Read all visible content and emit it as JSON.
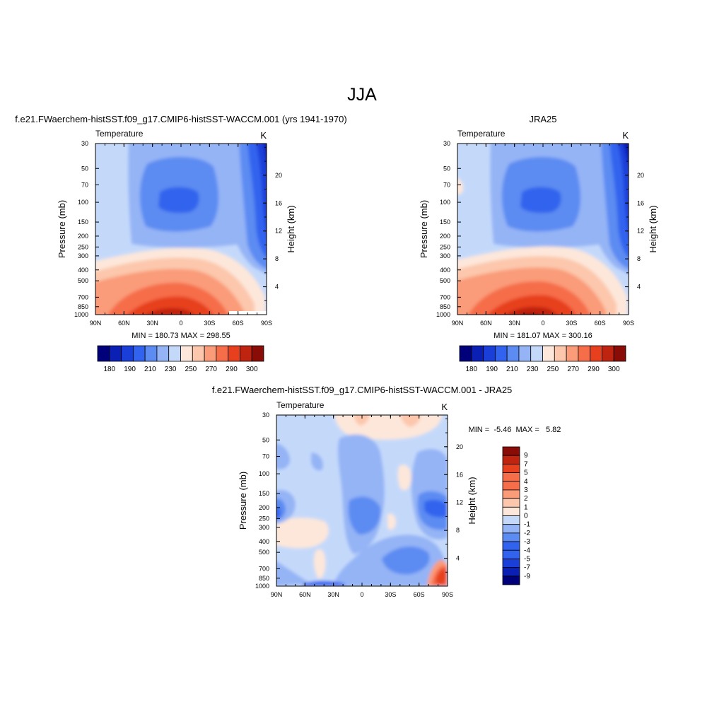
{
  "main_title": "JJA",
  "scale_colors": [
    "#00007a",
    "#0a1fb4",
    "#1a3fd9",
    "#3163ee",
    "#5c8bf2",
    "#94b4f6",
    "#c4d9fa",
    "#fde7da",
    "#fcc7ac",
    "#fa9b79",
    "#f66d49",
    "#e6401f",
    "#bf2410",
    "#8a0c06"
  ],
  "chart_data": [
    {
      "id": "model",
      "type": "contour",
      "title": "f.e21.FWaerchem-histSST.f09_g17.CMIP6-histSST-WACCM.001 (yrs 1941-1970)",
      "left_label": "Temperature",
      "right_label": "K",
      "xlabel": "",
      "ylabel": "Pressure (mb)",
      "y2label": "Height (km)",
      "x_ticks": [
        "90N",
        "60N",
        "30N",
        "0",
        "30S",
        "60S",
        "90S"
      ],
      "x_range": [
        90,
        -90
      ],
      "y_ticks": [
        "30",
        "50",
        "70",
        "100",
        "150",
        "200",
        "250",
        "300",
        "400",
        "500",
        "700",
        "850",
        "1000"
      ],
      "y_range_mb": [
        1000,
        30
      ],
      "y2_ticks": [
        "4",
        "8",
        "12",
        "16",
        "20"
      ],
      "stats": "MIN = 180.73  MAX = 298.55",
      "min": 180.73,
      "max": 298.55,
      "colorbar_labels": [
        "180",
        "190",
        "210",
        "230",
        "250",
        "270",
        "290",
        "300"
      ]
    },
    {
      "id": "obs",
      "type": "contour",
      "title": "JRA25",
      "left_label": "Temperature",
      "right_label": "K",
      "xlabel": "",
      "ylabel": "Pressure (mb)",
      "y2label": "Height (km)",
      "x_ticks": [
        "90N",
        "60N",
        "30N",
        "0",
        "30S",
        "60S",
        "90S"
      ],
      "x_range": [
        90,
        -90
      ],
      "y_ticks": [
        "30",
        "50",
        "70",
        "100",
        "150",
        "200",
        "250",
        "300",
        "400",
        "500",
        "700",
        "850",
        "1000"
      ],
      "y_range_mb": [
        1000,
        30
      ],
      "y2_ticks": [
        "4",
        "8",
        "12",
        "16",
        "20"
      ],
      "stats": "MIN = 181.07  MAX = 300.16",
      "min": 181.07,
      "max": 300.16,
      "colorbar_labels": [
        "180",
        "190",
        "210",
        "230",
        "250",
        "270",
        "290",
        "300"
      ]
    },
    {
      "id": "diff",
      "type": "contour",
      "title": "f.e21.FWaerchem-histSST.f09_g17.CMIP6-histSST-WACCM.001 - JRA25",
      "left_label": "Temperature",
      "right_label": "K",
      "xlabel": "",
      "ylabel": "Pressure (mb)",
      "y2label": "Height (km)",
      "x_ticks": [
        "90N",
        "60N",
        "30N",
        "0",
        "30S",
        "60S",
        "90S"
      ],
      "x_range": [
        90,
        -90
      ],
      "y_ticks": [
        "30",
        "50",
        "70",
        "100",
        "150",
        "200",
        "250",
        "300",
        "400",
        "500",
        "700",
        "850",
        "1000"
      ],
      "y_range_mb": [
        1000,
        30
      ],
      "y2_ticks": [
        "4",
        "8",
        "12",
        "16",
        "20"
      ],
      "stats": "MIN =  -5.46  MAX =   5.82",
      "min": -5.46,
      "max": 5.82,
      "colorbar_labels": [
        "9",
        "7",
        "5",
        "4",
        "3",
        "2",
        "1",
        "0",
        "-1",
        "-2",
        "-3",
        "-4",
        "-5",
        "-7",
        "-9"
      ]
    }
  ]
}
